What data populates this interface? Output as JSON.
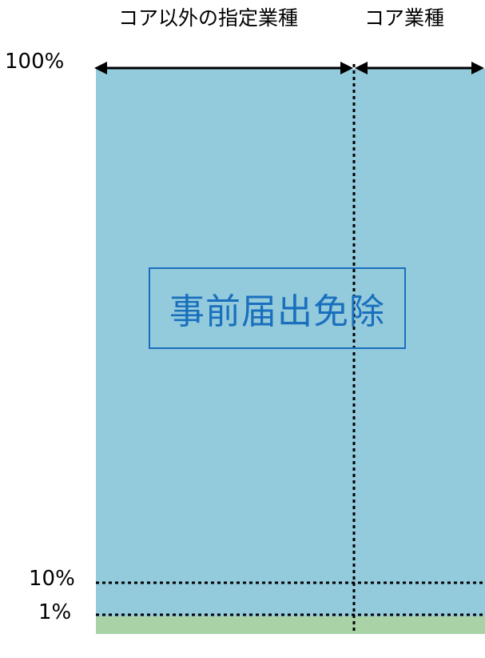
{
  "header": {
    "non_core_label": "コア以外の指定業種",
    "core_label": "コア業種"
  },
  "axis": {
    "label_100": "100%",
    "label_10": "10%",
    "label_1": "1%"
  },
  "regions": {
    "exempt_label": "事前届出免除"
  },
  "colors": {
    "exempt_fill": "#93cbdc",
    "bottom_fill": "#a9d3a6",
    "exempt_text": "#1a6fbd",
    "line": "#000000"
  }
}
